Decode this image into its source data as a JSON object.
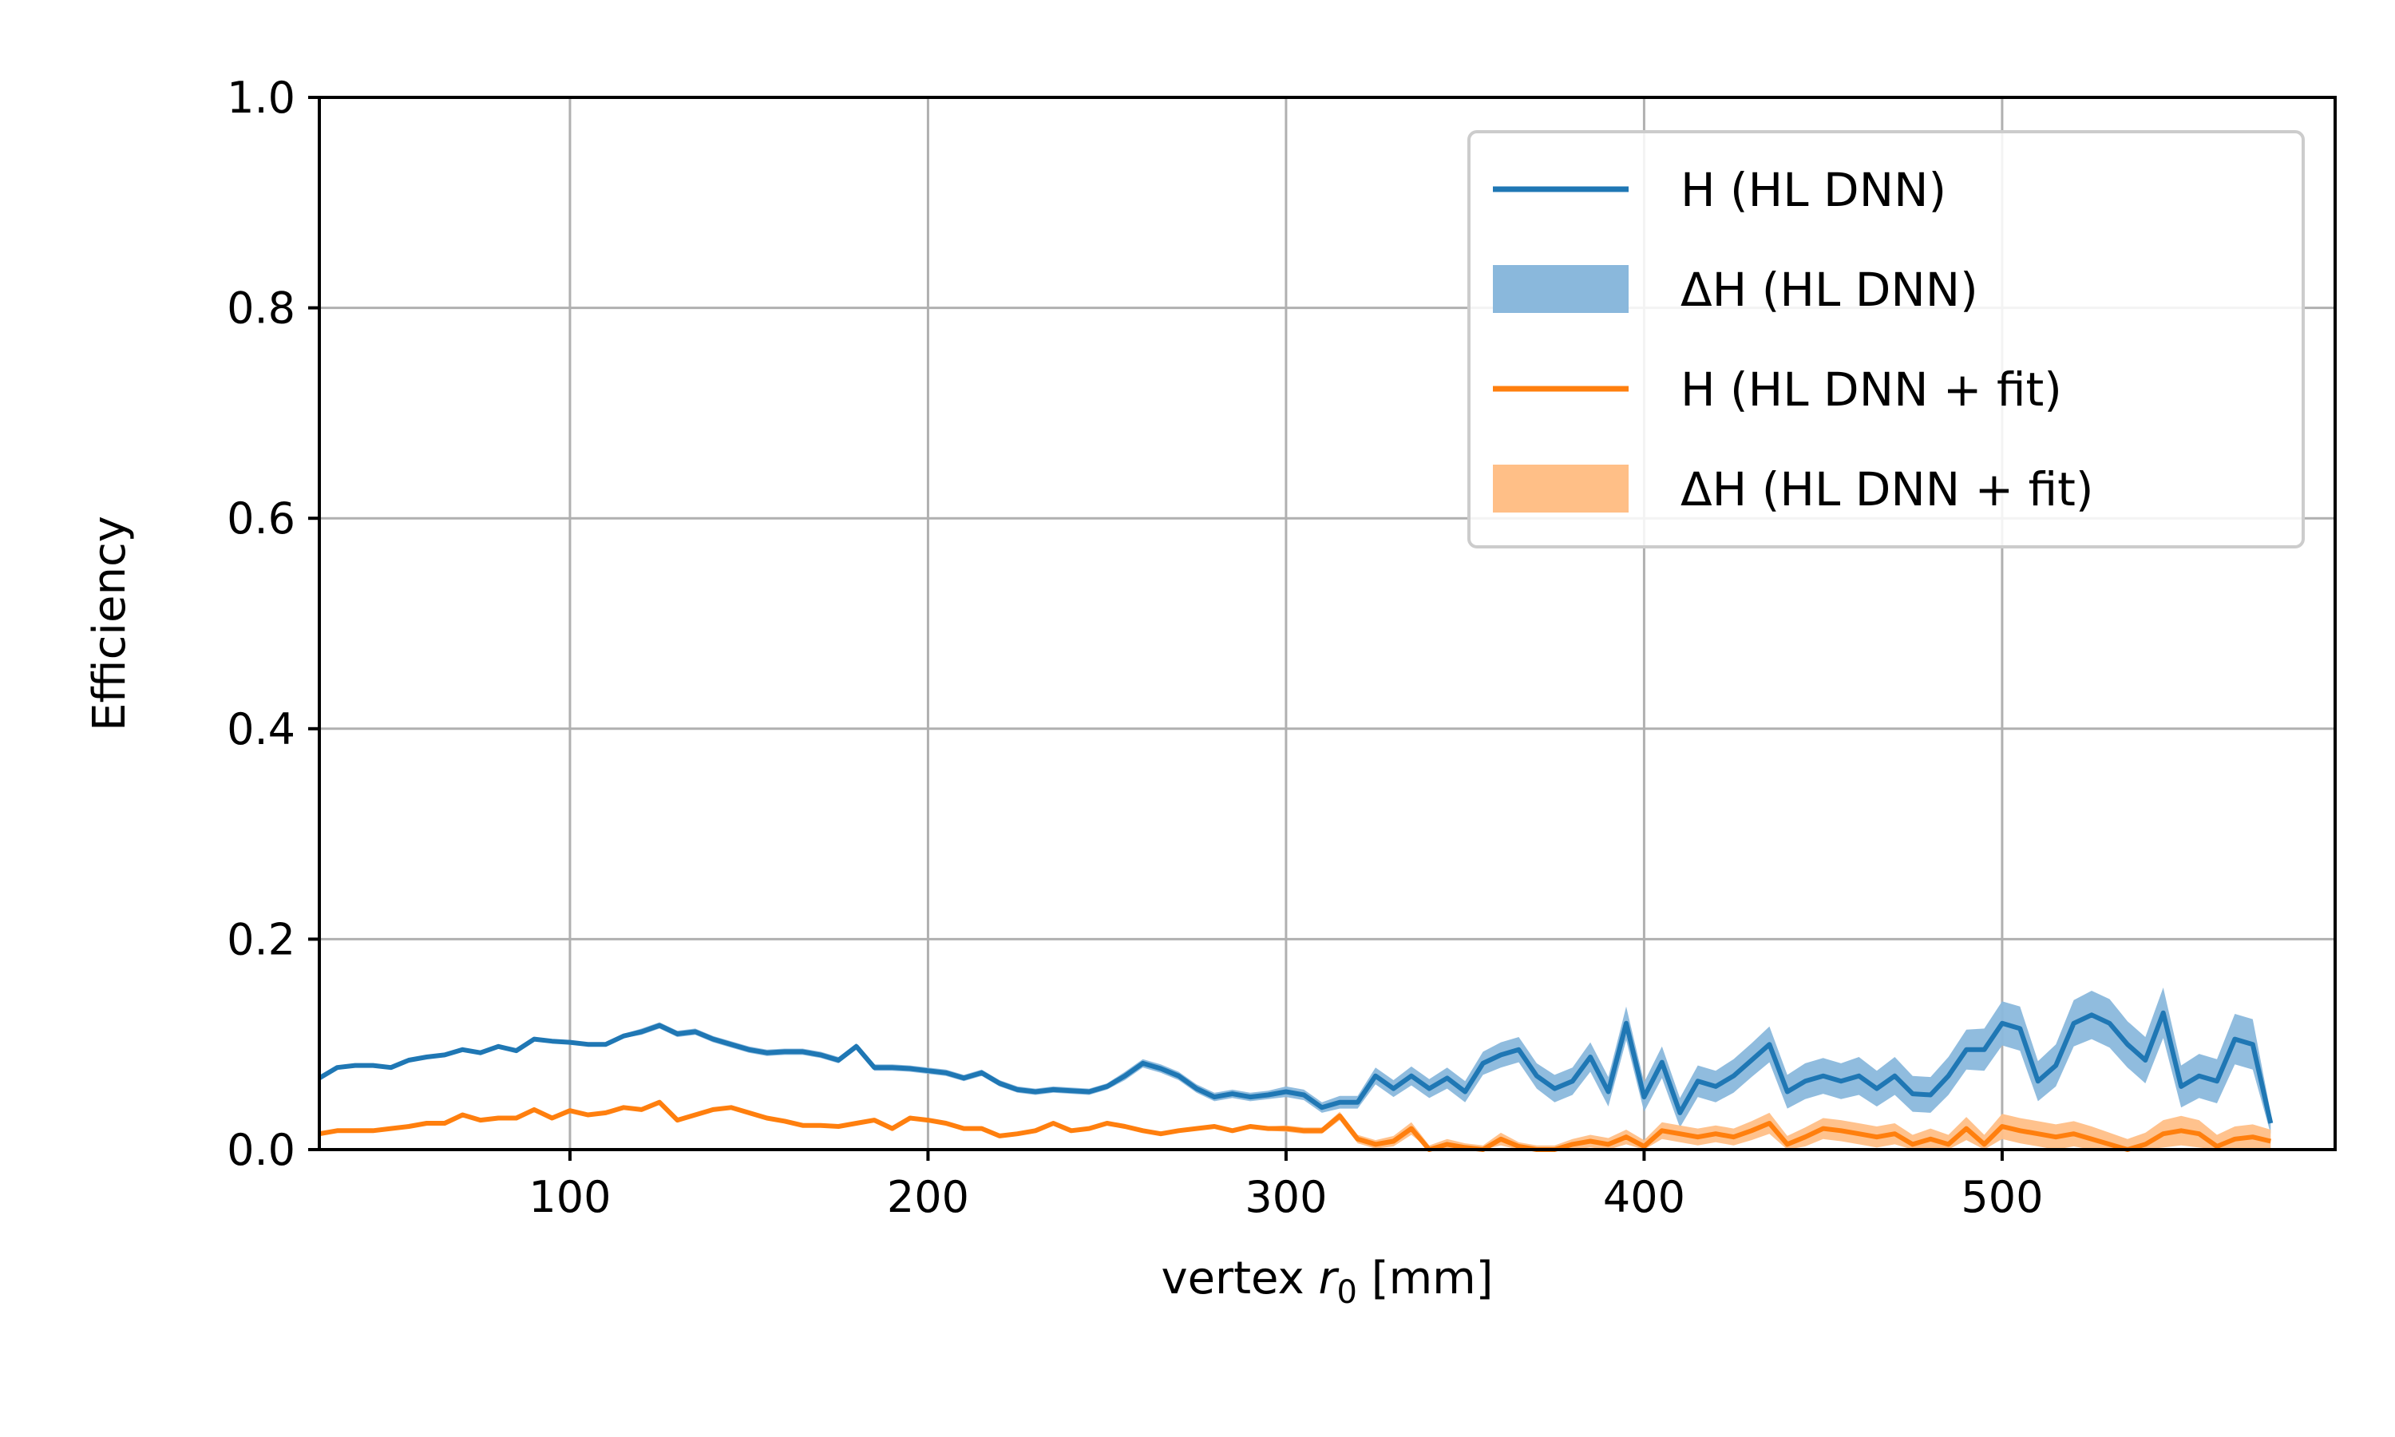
{
  "chart_data": {
    "type": "line",
    "xlabel": "vertex r₀ [mm]",
    "xlabel_parts": {
      "prefix": "vertex ",
      "var": "r",
      "sub": "0",
      "suffix": " [mm]"
    },
    "ylabel": "Efficiency",
    "xlim": [
      30,
      593
    ],
    "ylim": [
      0,
      1.0
    ],
    "x_ticks": [
      100,
      200,
      300,
      400,
      500
    ],
    "y_ticks": [
      0.0,
      0.2,
      0.4,
      0.6,
      0.8,
      1.0
    ],
    "x_tick_labels": [
      "100",
      "200",
      "300",
      "400",
      "500"
    ],
    "y_tick_labels": [
      "0.0",
      "0.2",
      "0.4",
      "0.6",
      "0.8",
      "1.0"
    ],
    "grid": true,
    "legend_position": "top-right",
    "colors": {
      "blue": "#1f77b4",
      "orange": "#ff7f0e",
      "blue_band": "#8ab8dc",
      "orange_band": "#ffbf87",
      "grid": "#b0b0b0"
    },
    "legend": [
      {
        "label": "H (HL DNN)",
        "kind": "line",
        "color": "#1f77b4"
      },
      {
        "label": "ΔH (HL DNN)",
        "kind": "band",
        "color": "#8ab8dc"
      },
      {
        "label": "H (HL DNN + fit)",
        "kind": "line",
        "color": "#ff7f0e"
      },
      {
        "label": "ΔH (HL DNN + fit)",
        "kind": "band",
        "color": "#ffbf87"
      }
    ],
    "series": [
      {
        "name": "H (HL DNN)",
        "color": "#1f77b4",
        "band_name": "ΔH (HL DNN)",
        "band_color": "#8ab8dc",
        "points": [
          [
            30,
            0.068
          ],
          [
            35,
            0.078
          ],
          [
            40,
            0.08
          ],
          [
            45,
            0.08
          ],
          [
            50,
            0.078
          ],
          [
            55,
            0.085
          ],
          [
            60,
            0.088
          ],
          [
            65,
            0.09
          ],
          [
            70,
            0.095
          ],
          [
            75,
            0.092
          ],
          [
            80,
            0.098
          ],
          [
            85,
            0.094
          ],
          [
            90,
            0.105
          ],
          [
            95,
            0.103
          ],
          [
            100,
            0.102
          ],
          [
            105,
            0.1
          ],
          [
            110,
            0.1
          ],
          [
            115,
            0.108
          ],
          [
            120,
            0.112
          ],
          [
            125,
            0.118
          ],
          [
            130,
            0.11
          ],
          [
            135,
            0.112
          ],
          [
            140,
            0.105
          ],
          [
            145,
            0.1
          ],
          [
            150,
            0.095
          ],
          [
            155,
            0.092
          ],
          [
            160,
            0.093
          ],
          [
            165,
            0.093
          ],
          [
            170,
            0.09
          ],
          [
            175,
            0.085
          ],
          [
            180,
            0.098
          ],
          [
            185,
            0.078
          ],
          [
            190,
            0.078
          ],
          [
            195,
            0.077
          ],
          [
            200,
            0.075
          ],
          [
            205,
            0.073
          ],
          [
            210,
            0.068
          ],
          [
            215,
            0.073
          ],
          [
            220,
            0.063
          ],
          [
            225,
            0.057
          ],
          [
            230,
            0.055
          ],
          [
            235,
            0.057
          ],
          [
            240,
            0.056
          ],
          [
            245,
            0.055
          ],
          [
            250,
            0.06
          ],
          [
            255,
            0.07
          ],
          [
            260,
            0.082
          ],
          [
            265,
            0.077
          ],
          [
            270,
            0.07
          ],
          [
            275,
            0.058
          ],
          [
            280,
            0.05
          ],
          [
            285,
            0.053
          ],
          [
            290,
            0.05
          ],
          [
            295,
            0.052
          ],
          [
            300,
            0.055
          ],
          [
            305,
            0.052
          ],
          [
            310,
            0.04
          ],
          [
            315,
            0.045
          ],
          [
            320,
            0.045
          ],
          [
            325,
            0.07
          ],
          [
            330,
            0.058
          ],
          [
            335,
            0.07
          ],
          [
            340,
            0.058
          ],
          [
            345,
            0.068
          ],
          [
            350,
            0.055
          ],
          [
            355,
            0.082
          ],
          [
            360,
            0.09
          ],
          [
            365,
            0.095
          ],
          [
            370,
            0.07
          ],
          [
            375,
            0.058
          ],
          [
            380,
            0.065
          ],
          [
            385,
            0.088
          ],
          [
            390,
            0.055
          ],
          [
            395,
            0.12
          ],
          [
            400,
            0.05
          ],
          [
            405,
            0.083
          ],
          [
            410,
            0.035
          ],
          [
            415,
            0.065
          ],
          [
            420,
            0.06
          ],
          [
            425,
            0.07
          ],
          [
            430,
            0.085
          ],
          [
            435,
            0.1
          ],
          [
            440,
            0.055
          ],
          [
            445,
            0.065
          ],
          [
            450,
            0.07
          ],
          [
            455,
            0.065
          ],
          [
            460,
            0.07
          ],
          [
            465,
            0.058
          ],
          [
            470,
            0.07
          ],
          [
            475,
            0.053
          ],
          [
            480,
            0.052
          ],
          [
            485,
            0.07
          ],
          [
            490,
            0.095
          ],
          [
            495,
            0.095
          ],
          [
            500,
            0.12
          ],
          [
            505,
            0.115
          ],
          [
            510,
            0.065
          ],
          [
            515,
            0.08
          ],
          [
            520,
            0.12
          ],
          [
            525,
            0.128
          ],
          [
            530,
            0.12
          ],
          [
            535,
            0.1
          ],
          [
            540,
            0.085
          ],
          [
            545,
            0.13
          ],
          [
            550,
            0.06
          ],
          [
            555,
            0.07
          ],
          [
            560,
            0.065
          ],
          [
            565,
            0.105
          ],
          [
            570,
            0.1
          ],
          [
            575,
            0.025
          ]
        ],
        "band_halfwidth": [
          0.002,
          0.002,
          0.002,
          0.002,
          0.002,
          0.002,
          0.002,
          0.002,
          0.002,
          0.002,
          0.002,
          0.002,
          0.002,
          0.002,
          0.002,
          0.002,
          0.002,
          0.002,
          0.003,
          0.003,
          0.003,
          0.003,
          0.003,
          0.003,
          0.003,
          0.003,
          0.003,
          0.003,
          0.003,
          0.003,
          0.003,
          0.003,
          0.003,
          0.003,
          0.003,
          0.003,
          0.003,
          0.003,
          0.003,
          0.003,
          0.003,
          0.003,
          0.003,
          0.003,
          0.003,
          0.004,
          0.004,
          0.004,
          0.004,
          0.004,
          0.004,
          0.004,
          0.004,
          0.004,
          0.005,
          0.005,
          0.005,
          0.006,
          0.006,
          0.008,
          0.008,
          0.009,
          0.009,
          0.01,
          0.01,
          0.011,
          0.012,
          0.012,
          0.012,
          0.013,
          0.013,
          0.014,
          0.014,
          0.016,
          0.014,
          0.015,
          0.014,
          0.015,
          0.015,
          0.016,
          0.016,
          0.017,
          0.016,
          0.017,
          0.017,
          0.017,
          0.018,
          0.017,
          0.018,
          0.017,
          0.017,
          0.018,
          0.019,
          0.02,
          0.021,
          0.021,
          0.019,
          0.02,
          0.022,
          0.023,
          0.023,
          0.022,
          0.022,
          0.024,
          0.02,
          0.021,
          0.021,
          0.024,
          0.024,
          0.01
        ]
      },
      {
        "name": "H (HL DNN + fit)",
        "color": "#ff7f0e",
        "band_name": "ΔH (HL DNN + fit)",
        "band_color": "#ffbf87",
        "points": [
          [
            30,
            0.015
          ],
          [
            35,
            0.018
          ],
          [
            40,
            0.018
          ],
          [
            45,
            0.018
          ],
          [
            50,
            0.02
          ],
          [
            55,
            0.022
          ],
          [
            60,
            0.025
          ],
          [
            65,
            0.025
          ],
          [
            70,
            0.033
          ],
          [
            75,
            0.028
          ],
          [
            80,
            0.03
          ],
          [
            85,
            0.03
          ],
          [
            90,
            0.038
          ],
          [
            95,
            0.03
          ],
          [
            100,
            0.037
          ],
          [
            105,
            0.033
          ],
          [
            110,
            0.035
          ],
          [
            115,
            0.04
          ],
          [
            120,
            0.038
          ],
          [
            125,
            0.045
          ],
          [
            130,
            0.028
          ],
          [
            135,
            0.033
          ],
          [
            140,
            0.038
          ],
          [
            145,
            0.04
          ],
          [
            150,
            0.035
          ],
          [
            155,
            0.03
          ],
          [
            160,
            0.027
          ],
          [
            165,
            0.023
          ],
          [
            170,
            0.023
          ],
          [
            175,
            0.022
          ],
          [
            180,
            0.025
          ],
          [
            185,
            0.028
          ],
          [
            190,
            0.02
          ],
          [
            195,
            0.03
          ],
          [
            200,
            0.028
          ],
          [
            205,
            0.025
          ],
          [
            210,
            0.02
          ],
          [
            215,
            0.02
          ],
          [
            220,
            0.013
          ],
          [
            225,
            0.015
          ],
          [
            230,
            0.018
          ],
          [
            235,
            0.025
          ],
          [
            240,
            0.018
          ],
          [
            245,
            0.02
          ],
          [
            250,
            0.025
          ],
          [
            255,
            0.022
          ],
          [
            260,
            0.018
          ],
          [
            265,
            0.015
          ],
          [
            270,
            0.018
          ],
          [
            275,
            0.02
          ],
          [
            280,
            0.022
          ],
          [
            285,
            0.018
          ],
          [
            290,
            0.022
          ],
          [
            295,
            0.02
          ],
          [
            300,
            0.02
          ],
          [
            305,
            0.018
          ],
          [
            310,
            0.018
          ],
          [
            315,
            0.032
          ],
          [
            320,
            0.01
          ],
          [
            325,
            0.005
          ],
          [
            330,
            0.008
          ],
          [
            335,
            0.02
          ],
          [
            340,
            0.0
          ],
          [
            345,
            0.005
          ],
          [
            350,
            0.002
          ],
          [
            355,
            0.0
          ],
          [
            360,
            0.01
          ],
          [
            365,
            0.003
          ],
          [
            370,
            0.0
          ],
          [
            375,
            0.0
          ],
          [
            380,
            0.005
          ],
          [
            385,
            0.008
          ],
          [
            390,
            0.005
          ],
          [
            395,
            0.012
          ],
          [
            400,
            0.003
          ],
          [
            405,
            0.018
          ],
          [
            410,
            0.015
          ],
          [
            415,
            0.012
          ],
          [
            420,
            0.015
          ],
          [
            425,
            0.012
          ],
          [
            430,
            0.018
          ],
          [
            435,
            0.025
          ],
          [
            440,
            0.005
          ],
          [
            445,
            0.012
          ],
          [
            450,
            0.02
          ],
          [
            455,
            0.018
          ],
          [
            460,
            0.015
          ],
          [
            465,
            0.012
          ],
          [
            470,
            0.015
          ],
          [
            475,
            0.005
          ],
          [
            480,
            0.01
          ],
          [
            485,
            0.005
          ],
          [
            490,
            0.02
          ],
          [
            495,
            0.005
          ],
          [
            500,
            0.022
          ],
          [
            505,
            0.018
          ],
          [
            510,
            0.015
          ],
          [
            515,
            0.012
          ],
          [
            520,
            0.015
          ],
          [
            525,
            0.01
          ],
          [
            530,
            0.005
          ],
          [
            535,
            0.0
          ],
          [
            540,
            0.005
          ],
          [
            545,
            0.015
          ],
          [
            550,
            0.018
          ],
          [
            555,
            0.015
          ],
          [
            560,
            0.003
          ],
          [
            565,
            0.01
          ],
          [
            570,
            0.012
          ],
          [
            575,
            0.008
          ]
        ],
        "band_halfwidth": [
          0.002,
          0.002,
          0.002,
          0.002,
          0.002,
          0.002,
          0.002,
          0.002,
          0.002,
          0.002,
          0.002,
          0.002,
          0.002,
          0.002,
          0.002,
          0.002,
          0.002,
          0.002,
          0.002,
          0.002,
          0.002,
          0.002,
          0.002,
          0.002,
          0.002,
          0.002,
          0.002,
          0.002,
          0.002,
          0.002,
          0.002,
          0.002,
          0.002,
          0.002,
          0.002,
          0.002,
          0.002,
          0.002,
          0.002,
          0.002,
          0.002,
          0.002,
          0.002,
          0.002,
          0.002,
          0.002,
          0.002,
          0.002,
          0.002,
          0.002,
          0.002,
          0.002,
          0.002,
          0.002,
          0.003,
          0.003,
          0.003,
          0.004,
          0.004,
          0.004,
          0.005,
          0.006,
          0.004,
          0.005,
          0.004,
          0.004,
          0.006,
          0.004,
          0.004,
          0.004,
          0.005,
          0.006,
          0.006,
          0.007,
          0.006,
          0.008,
          0.008,
          0.008,
          0.008,
          0.008,
          0.009,
          0.01,
          0.008,
          0.009,
          0.01,
          0.01,
          0.01,
          0.01,
          0.01,
          0.009,
          0.01,
          0.009,
          0.011,
          0.009,
          0.012,
          0.012,
          0.012,
          0.012,
          0.012,
          0.012,
          0.011,
          0.01,
          0.011,
          0.013,
          0.014,
          0.013,
          0.011,
          0.012,
          0.012,
          0.011
        ]
      }
    ]
  }
}
